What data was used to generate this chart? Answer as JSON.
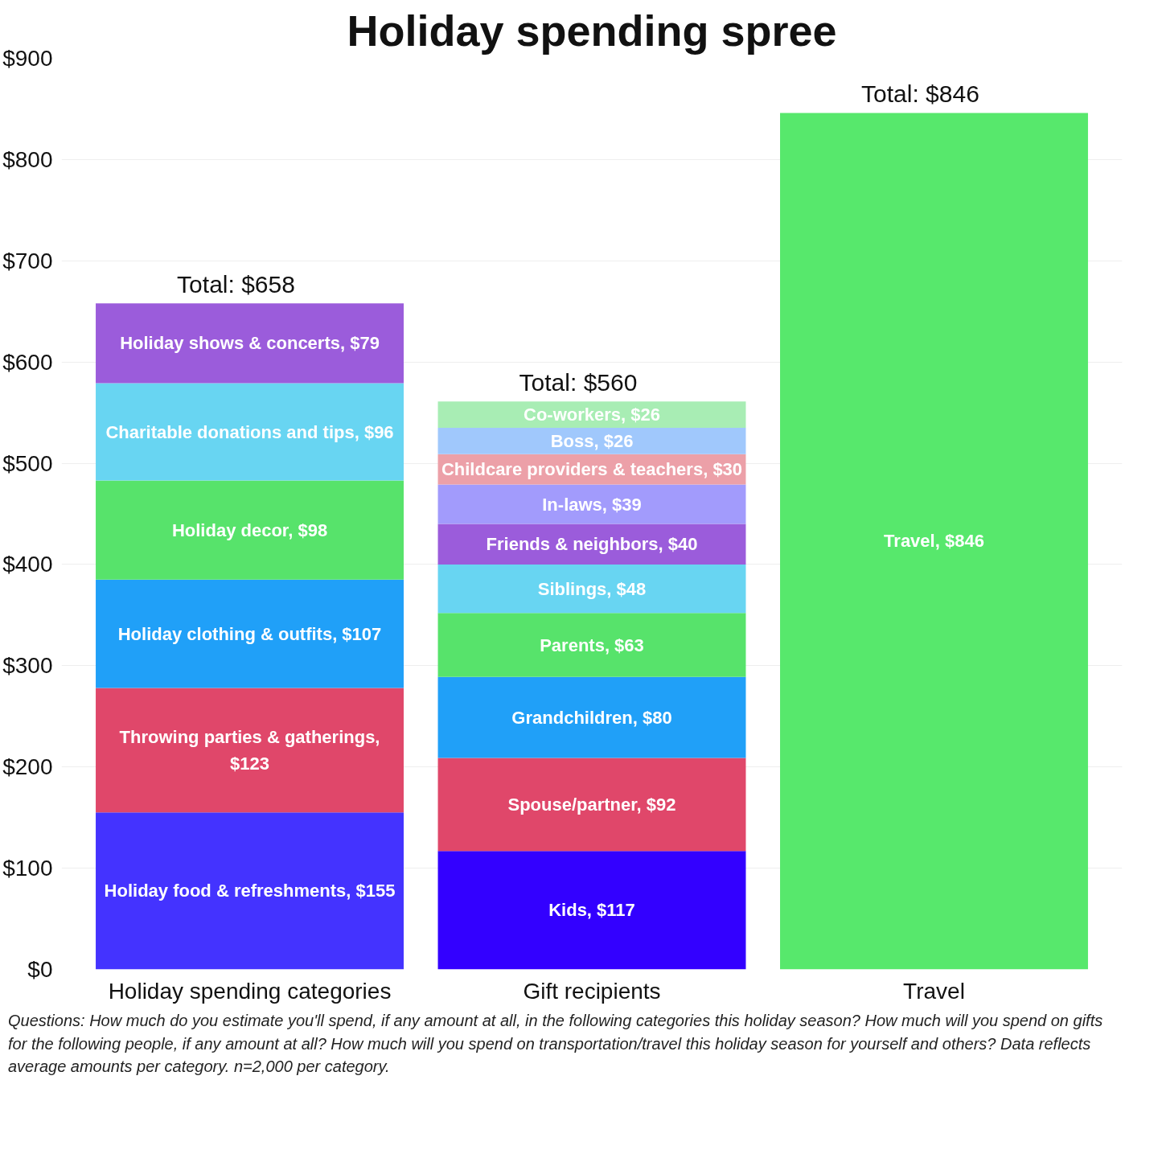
{
  "chart_data": {
    "type": "bar",
    "stacked": true,
    "title": "Holiday spending spree",
    "categories": [
      "Holiday spending categories",
      "Gift recipients",
      "Travel"
    ],
    "ylim": [
      0,
      900
    ],
    "yticks": [
      {
        "value": 0,
        "label": "$0"
      },
      {
        "value": 100,
        "label": "$100"
      },
      {
        "value": 200,
        "label": "$200"
      },
      {
        "value": 300,
        "label": "$300"
      },
      {
        "value": 400,
        "label": "$400"
      },
      {
        "value": 500,
        "label": "$500"
      },
      {
        "value": 600,
        "label": "$600"
      },
      {
        "value": 700,
        "label": "$700"
      },
      {
        "value": 800,
        "label": "$800"
      },
      {
        "value": 900,
        "label": "$900"
      }
    ],
    "grid": "y",
    "series": [
      {
        "color": "#4433ff",
        "values": [
          155,
          null,
          null
        ],
        "value_labels": [
          "Holiday food & refreshments, $155",
          null,
          null
        ]
      },
      {
        "color": "#e0476a",
        "values": [
          123,
          null,
          null
        ],
        "value_labels": [
          "Throwing parties & gatherings, $123",
          null,
          null
        ]
      },
      {
        "color": "#20a0f8",
        "values": [
          107,
          null,
          null
        ],
        "value_labels": [
          "Holiday clothing & outfits, $107",
          null,
          null
        ]
      },
      {
        "color": "#57e36b",
        "values": [
          98,
          null,
          null
        ],
        "value_labels": [
          "Holiday decor, $98",
          null,
          null
        ]
      },
      {
        "color": "#68d5f2",
        "values": [
          96,
          null,
          null
        ],
        "value_labels": [
          "Charitable donations and tips, $96",
          null,
          null
        ]
      },
      {
        "color": "#9b5cdb",
        "values": [
          79,
          null,
          null
        ],
        "value_labels": [
          "Holiday shows & concerts, $79",
          null,
          null
        ]
      },
      {
        "color": "#3300ff",
        "values": [
          null,
          117,
          null
        ],
        "value_labels": [
          null,
          "Kids, $117",
          null
        ]
      },
      {
        "color": "#e0476a",
        "values": [
          null,
          92,
          null
        ],
        "value_labels": [
          null,
          "Spouse/partner, $92",
          null
        ]
      },
      {
        "color": "#20a0f8",
        "values": [
          null,
          80,
          null
        ],
        "value_labels": [
          null,
          "Grandchildren, $80",
          null
        ]
      },
      {
        "color": "#57e36b",
        "values": [
          null,
          63,
          null
        ],
        "value_labels": [
          null,
          "Parents, $63",
          null
        ]
      },
      {
        "color": "#68d5f2",
        "values": [
          null,
          48,
          null
        ],
        "value_labels": [
          null,
          "Siblings, $48",
          null
        ]
      },
      {
        "color": "#9b5cdb",
        "values": [
          null,
          40,
          null
        ],
        "value_labels": [
          null,
          "Friends & neighbors, $40",
          null
        ]
      },
      {
        "color": "#a29bfc",
        "values": [
          null,
          39,
          null
        ],
        "value_labels": [
          null,
          "In-laws, $39",
          null
        ]
      },
      {
        "color": "#eca0a8",
        "values": [
          null,
          30,
          null
        ],
        "value_labels": [
          null,
          "Childcare providers & teachers, $30",
          null
        ]
      },
      {
        "color": "#a0c8fc",
        "values": [
          null,
          26,
          null
        ],
        "value_labels": [
          null,
          "Boss, $26",
          null
        ]
      },
      {
        "color": "#a8edb4",
        "values": [
          null,
          26,
          null
        ],
        "value_labels": [
          null,
          "Co-workers, $26",
          null
        ]
      },
      {
        "color": "#57e86c",
        "values": [
          null,
          null,
          846
        ],
        "value_labels": [
          null,
          null,
          "Travel, $846"
        ]
      }
    ],
    "totals": [
      "Total: $658",
      "Total: $560",
      "Total: $846"
    ],
    "annotations": [
      "Questions: How much do you estimate you'll spend, if any amount at all, in the following categories this holiday season? How much will you spend on gifts for the following people, if any amount at all? How much will you spend on transportation/travel this holiday season for yourself and others? Data reflects average amounts per category. n=2,000 per category."
    ]
  }
}
